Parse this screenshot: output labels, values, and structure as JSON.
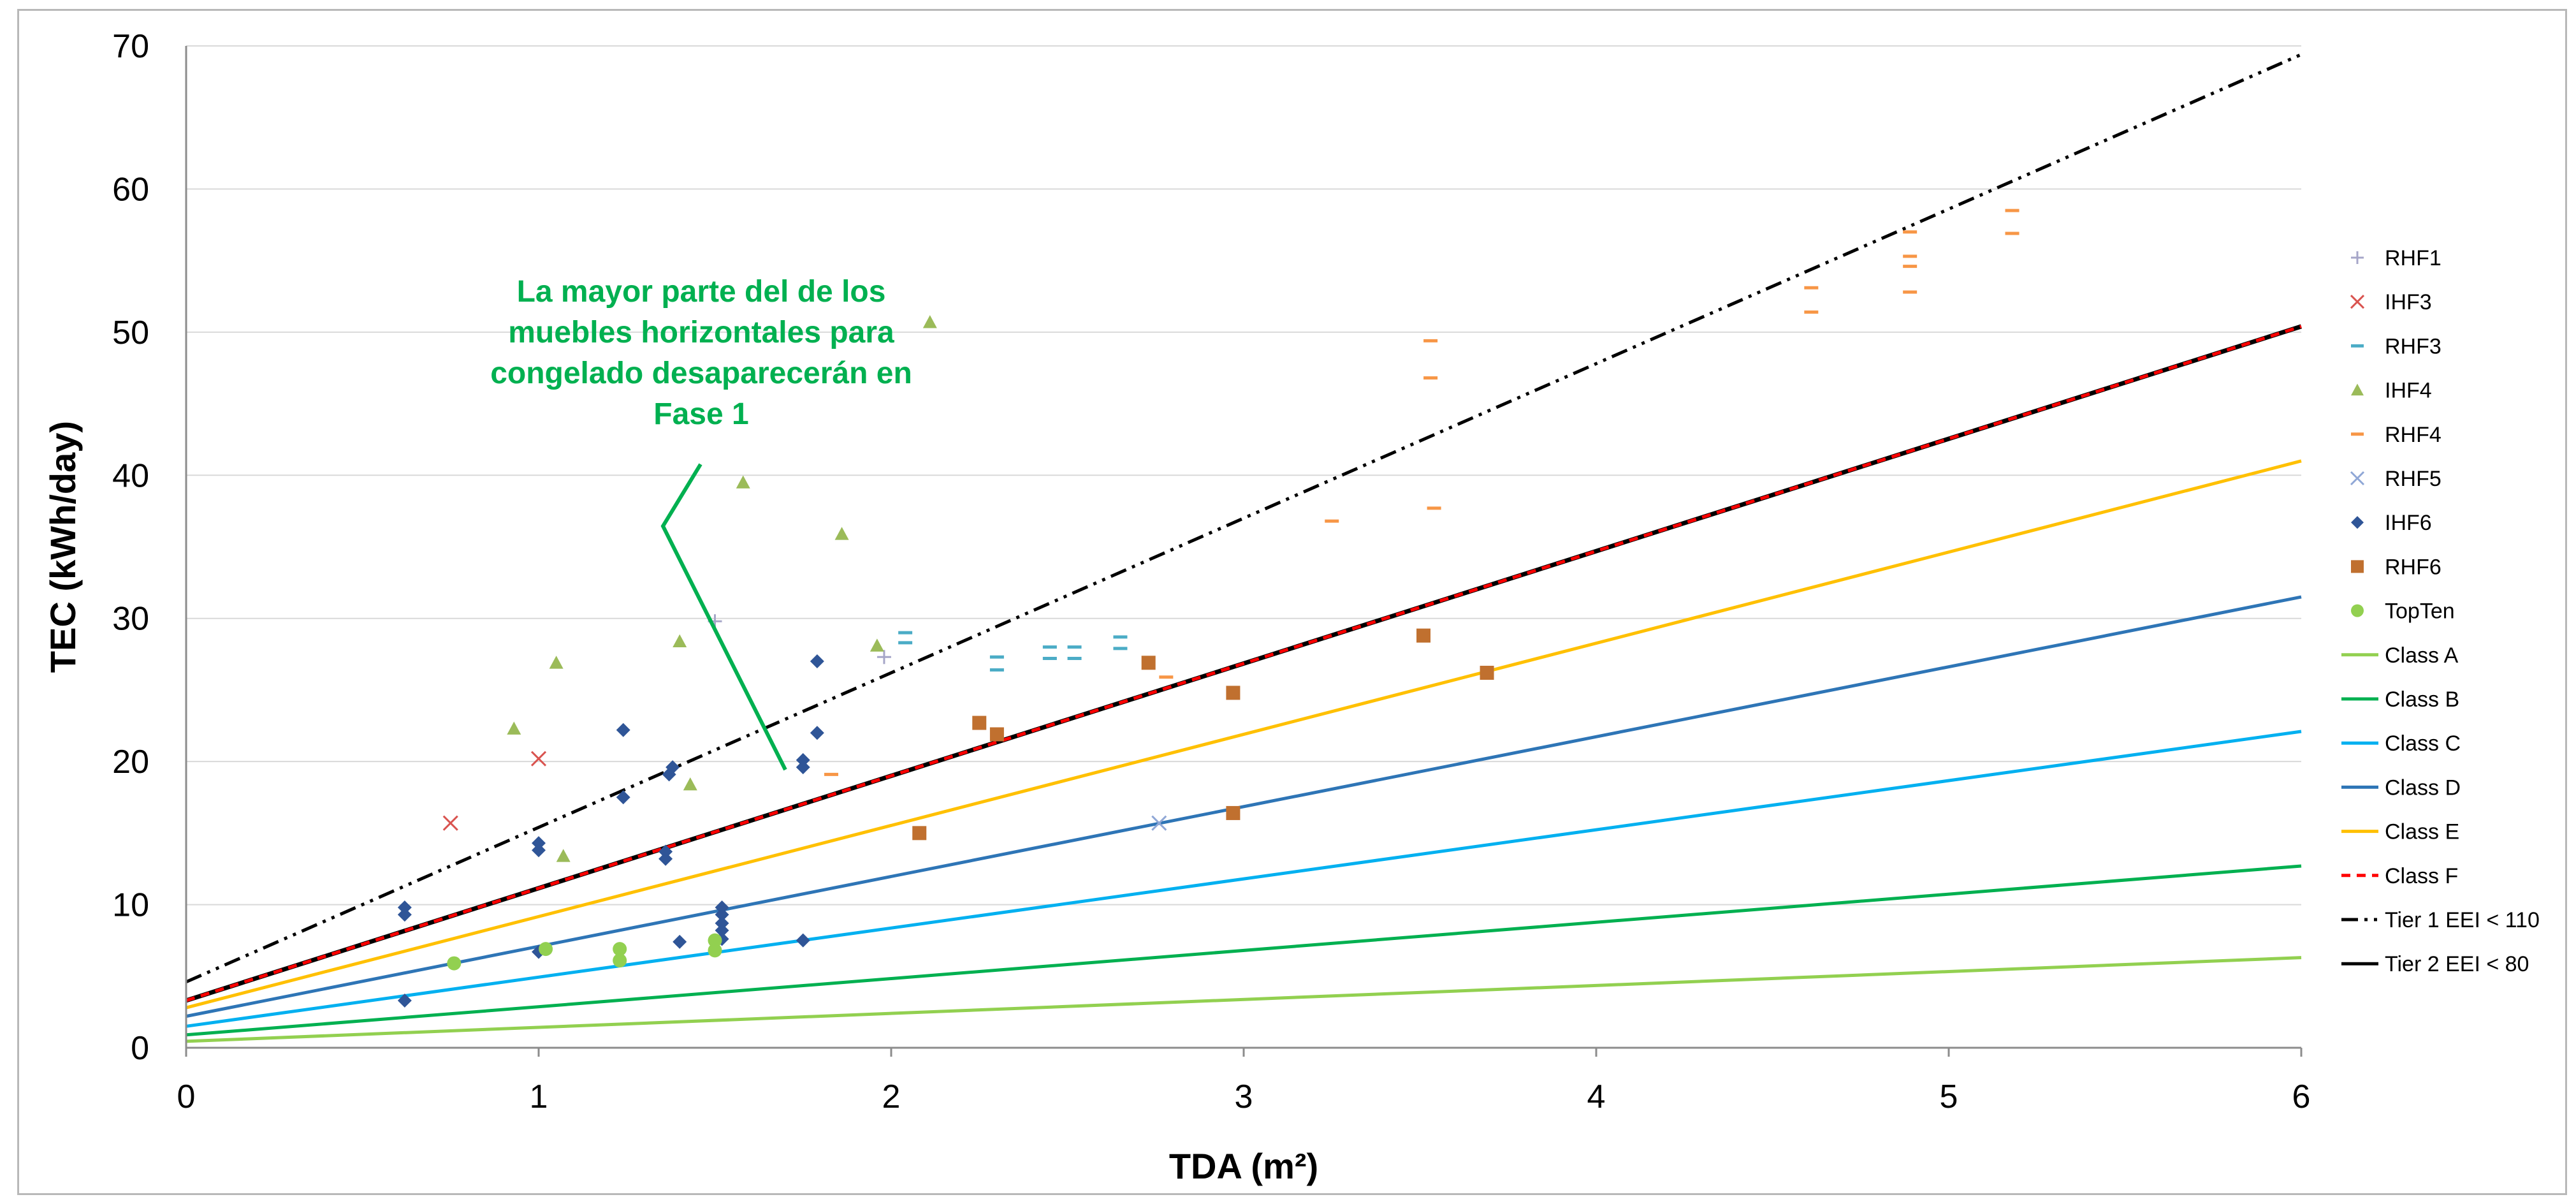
{
  "chart_data": {
    "type": "scatter",
    "title": "",
    "xlabel": "TDA (m²)",
    "ylabel": "TEC (kWh/day)",
    "xlim": [
      0,
      6
    ],
    "ylim": [
      0,
      70
    ],
    "x_ticks": [
      "0",
      "1",
      "2",
      "3",
      "4",
      "5",
      "6"
    ],
    "y_ticks": [
      "0",
      "10",
      "20",
      "30",
      "40",
      "50",
      "60",
      "70"
    ],
    "grid": "horizontal",
    "legend_position": "right",
    "annotation": {
      "lines": [
        "La mayor parte del de los",
        "muebles horizontales para",
        "congelado desaparecerán en",
        "Fase 1"
      ],
      "color": "#00b050"
    },
    "series": [
      {
        "name": "RHF1",
        "kind": "scatter",
        "marker": "plus",
        "color": "#a6a6c8",
        "points": [
          [
            1.5,
            29.8
          ],
          [
            1.98,
            27.3
          ]
        ]
      },
      {
        "name": "IHF3",
        "kind": "scatter",
        "marker": "x",
        "color": "#d9534f",
        "points": [
          [
            0.75,
            15.7
          ],
          [
            1.0,
            20.2
          ]
        ]
      },
      {
        "name": "RHF3",
        "kind": "scatter",
        "marker": "dash",
        "color": "#4bacc6",
        "points": [
          [
            2.04,
            29.0
          ],
          [
            2.04,
            28.3
          ],
          [
            2.3,
            27.3
          ],
          [
            2.3,
            26.4
          ],
          [
            2.45,
            28.0
          ],
          [
            2.45,
            27.2
          ],
          [
            2.52,
            28.0
          ],
          [
            2.52,
            27.2
          ],
          [
            2.65,
            28.7
          ],
          [
            2.65,
            27.9
          ]
        ]
      },
      {
        "name": "IHF4",
        "kind": "scatter",
        "marker": "triangle",
        "color": "#9bbb59",
        "points": [
          [
            0.93,
            22.3
          ],
          [
            1.05,
            26.9
          ],
          [
            1.07,
            13.4
          ],
          [
            1.4,
            28.4
          ],
          [
            1.43,
            18.4
          ],
          [
            1.58,
            39.5
          ],
          [
            1.86,
            35.9
          ],
          [
            1.96,
            28.1
          ],
          [
            2.11,
            50.7
          ]
        ]
      },
      {
        "name": "RHF4",
        "kind": "scatter",
        "marker": "dash",
        "color": "#f79646",
        "points": [
          [
            1.83,
            19.1
          ],
          [
            2.78,
            25.9
          ],
          [
            3.25,
            36.8
          ],
          [
            3.53,
            49.4
          ],
          [
            3.53,
            46.8
          ],
          [
            3.54,
            37.7
          ],
          [
            4.61,
            53.1
          ],
          [
            4.61,
            51.4
          ],
          [
            4.89,
            57.0
          ],
          [
            4.89,
            55.3
          ],
          [
            4.89,
            54.6
          ],
          [
            4.89,
            52.8
          ],
          [
            5.18,
            58.5
          ],
          [
            5.18,
            56.9
          ]
        ]
      },
      {
        "name": "RHF5",
        "kind": "scatter",
        "marker": "x",
        "color": "#8fa7d6",
        "points": [
          [
            2.76,
            15.7
          ]
        ]
      },
      {
        "name": "IHF6",
        "kind": "scatter",
        "marker": "diamond",
        "color": "#2f5597",
        "points": [
          [
            0.62,
            9.8
          ],
          [
            0.62,
            9.3
          ],
          [
            0.62,
            3.3
          ],
          [
            1.0,
            14.3
          ],
          [
            1.0,
            13.8
          ],
          [
            1.0,
            6.7
          ],
          [
            1.24,
            22.2
          ],
          [
            1.24,
            17.5
          ],
          [
            1.36,
            13.7
          ],
          [
            1.36,
            13.2
          ],
          [
            1.37,
            19.1
          ],
          [
            1.38,
            19.6
          ],
          [
            1.4,
            7.4
          ],
          [
            1.52,
            9.8
          ],
          [
            1.52,
            9.3
          ],
          [
            1.52,
            8.7
          ],
          [
            1.52,
            8.2
          ],
          [
            1.52,
            7.6
          ],
          [
            1.75,
            20.1
          ],
          [
            1.75,
            19.6
          ],
          [
            1.75,
            7.5
          ],
          [
            1.79,
            27.0
          ],
          [
            1.79,
            22.0
          ]
        ]
      },
      {
        "name": "RHF6",
        "kind": "scatter",
        "marker": "square",
        "color": "#c0702f",
        "points": [
          [
            2.08,
            15.0
          ],
          [
            2.25,
            22.7
          ],
          [
            2.3,
            21.9
          ],
          [
            2.73,
            26.9
          ],
          [
            2.97,
            24.8
          ],
          [
            2.97,
            16.4
          ],
          [
            3.51,
            28.8
          ],
          [
            3.69,
            26.2
          ]
        ]
      },
      {
        "name": "TopTen",
        "kind": "scatter",
        "marker": "circle",
        "color": "#92d050",
        "points": [
          [
            0.76,
            5.9
          ],
          [
            1.02,
            6.9
          ],
          [
            1.23,
            6.9
          ],
          [
            1.23,
            6.1
          ],
          [
            1.5,
            7.5
          ],
          [
            1.5,
            6.8
          ]
        ]
      },
      {
        "name": "Class A",
        "kind": "line",
        "color": "#92d050",
        "dash": "solid",
        "points": [
          [
            0,
            0.45
          ],
          [
            6,
            6.3
          ]
        ]
      },
      {
        "name": "Class  B",
        "kind": "line",
        "color": "#00b050",
        "dash": "solid",
        "points": [
          [
            0,
            0.9
          ],
          [
            6,
            12.7
          ]
        ]
      },
      {
        "name": "Class C",
        "kind": "line",
        "color": "#00b0f0",
        "dash": "solid",
        "points": [
          [
            0,
            1.5
          ],
          [
            6,
            22.1
          ]
        ]
      },
      {
        "name": "Class D",
        "kind": "line",
        "color": "#2e75b6",
        "dash": "solid",
        "points": [
          [
            0,
            2.2
          ],
          [
            6,
            31.5
          ]
        ]
      },
      {
        "name": "Class E",
        "kind": "line",
        "color": "#ffc000",
        "dash": "solid",
        "points": [
          [
            0,
            2.8
          ],
          [
            6,
            41.0
          ]
        ]
      },
      {
        "name": "Class  F",
        "kind": "line",
        "color": "#ff0000",
        "dash": "dashed",
        "points": [
          [
            0,
            3.3
          ],
          [
            6,
            50.4
          ]
        ]
      },
      {
        "name": "Tier 1 EEI < 110",
        "kind": "line",
        "color": "#000000",
        "dash": "dashdotdot",
        "points": [
          [
            0,
            4.6
          ],
          [
            6,
            69.4
          ]
        ]
      },
      {
        "name": "Tier 2 EEI < 80",
        "kind": "line",
        "color": "#000000",
        "dash": "solid-under",
        "points": [
          [
            0,
            3.3
          ],
          [
            6,
            50.4
          ]
        ]
      }
    ]
  }
}
